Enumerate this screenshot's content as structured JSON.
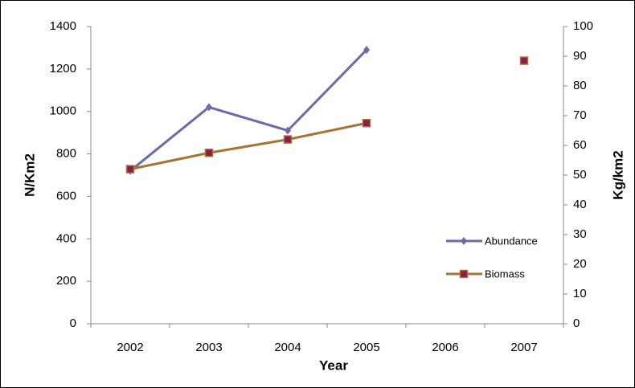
{
  "chart_data": {
    "type": "line",
    "x_label": "Year",
    "y_label": "N/Km2",
    "y2_label": "Kg/km2",
    "categories": [
      "2002",
      "2003",
      "2004",
      "2005",
      "2006",
      "2007"
    ],
    "series": [
      {
        "name": "Abundance",
        "color": "#6b6bab",
        "marker": "diamond",
        "values": [
          720,
          1020,
          910,
          1290,
          null,
          null
        ]
      },
      {
        "name": "Biomass",
        "color": "#a47434",
        "marker": "square",
        "marker_color": "#8c1c4c",
        "axis": "y2",
        "values": [
          52,
          57.5,
          62,
          67.5,
          null,
          88.5
        ]
      }
    ],
    "ylim": [
      0,
      1400
    ],
    "yticks": [
      0,
      200,
      400,
      600,
      800,
      1000,
      1200,
      1400
    ],
    "y2lim": [
      0,
      100
    ],
    "y2ticks": [
      0,
      10,
      20,
      30,
      40,
      50,
      60,
      70,
      80,
      90,
      100
    ],
    "legend": "right",
    "grid": false
  }
}
